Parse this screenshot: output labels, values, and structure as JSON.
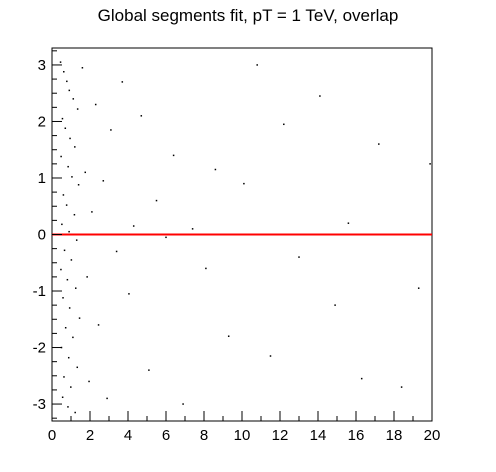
{
  "chart_data": {
    "type": "scatter",
    "title": "Global segments fit, pT = 1 TeV, overlap",
    "xlabel": "",
    "ylabel": "",
    "xlim": [
      0,
      20
    ],
    "ylim": [
      -3.3,
      3.3
    ],
    "x_ticks": [
      0,
      2,
      4,
      6,
      8,
      10,
      12,
      14,
      16,
      18,
      20
    ],
    "y_ticks": [
      -3,
      -2,
      -1,
      0,
      1,
      2,
      3
    ],
    "grid": false,
    "reference_line": {
      "y": 0,
      "color": "#ff0000"
    },
    "marker_color": "#000000",
    "series": [
      {
        "distribution": "dense band near x≈0.5–2, sparse tail toward x=20",
        "points": [
          [
            0.45,
            3.05
          ],
          [
            0.62,
            2.88
          ],
          [
            0.78,
            2.71
          ],
          [
            0.91,
            2.55
          ],
          [
            1.12,
            2.4
          ],
          [
            1.35,
            2.22
          ],
          [
            0.55,
            2.05
          ],
          [
            0.7,
            1.88
          ],
          [
            0.95,
            1.7
          ],
          [
            1.2,
            1.55
          ],
          [
            0.48,
            1.38
          ],
          [
            0.85,
            1.2
          ],
          [
            1.05,
            1.02
          ],
          [
            1.4,
            0.88
          ],
          [
            0.6,
            0.7
          ],
          [
            0.77,
            0.52
          ],
          [
            1.18,
            0.35
          ],
          [
            0.52,
            0.18
          ],
          [
            0.9,
            0.05
          ],
          [
            1.3,
            -0.1
          ],
          [
            0.66,
            -0.28
          ],
          [
            1.02,
            -0.45
          ],
          [
            0.47,
            -0.62
          ],
          [
            0.81,
            -0.8
          ],
          [
            1.25,
            -0.95
          ],
          [
            0.58,
            -1.12
          ],
          [
            0.93,
            -1.3
          ],
          [
            1.45,
            -1.48
          ],
          [
            0.72,
            -1.65
          ],
          [
            1.1,
            -1.82
          ],
          [
            0.5,
            -2.0
          ],
          [
            0.88,
            -2.18
          ],
          [
            1.33,
            -2.35
          ],
          [
            0.63,
            -2.52
          ],
          [
            0.99,
            -2.7
          ],
          [
            0.56,
            -2.88
          ],
          [
            0.84,
            -3.05
          ],
          [
            1.22,
            -3.15
          ],
          [
            1.6,
            2.95
          ],
          [
            1.75,
            1.1
          ],
          [
            1.85,
            -0.75
          ],
          [
            1.95,
            -2.6
          ],
          [
            2.1,
            0.4
          ],
          [
            2.3,
            2.3
          ],
          [
            2.45,
            -1.6
          ],
          [
            2.7,
            0.95
          ],
          [
            2.9,
            -2.9
          ],
          [
            3.1,
            1.85
          ],
          [
            3.4,
            -0.3
          ],
          [
            3.7,
            2.7
          ],
          [
            4.05,
            -1.05
          ],
          [
            4.3,
            0.15
          ],
          [
            4.7,
            2.1
          ],
          [
            5.1,
            -2.4
          ],
          [
            5.5,
            0.6
          ],
          [
            6.0,
            -0.05
          ],
          [
            6.4,
            1.4
          ],
          [
            6.9,
            -3.0
          ],
          [
            7.4,
            0.1
          ],
          [
            8.1,
            -0.6
          ],
          [
            8.6,
            1.15
          ],
          [
            9.3,
            -1.8
          ],
          [
            10.1,
            0.9
          ],
          [
            10.8,
            3.0
          ],
          [
            11.5,
            -2.15
          ],
          [
            12.2,
            1.95
          ],
          [
            13.0,
            -0.4
          ],
          [
            14.1,
            2.45
          ],
          [
            14.9,
            -1.25
          ],
          [
            15.6,
            0.2
          ],
          [
            16.3,
            -2.55
          ],
          [
            17.2,
            1.6
          ],
          [
            18.4,
            -2.7
          ],
          [
            19.9,
            1.25
          ],
          [
            19.3,
            -0.95
          ]
        ]
      }
    ]
  }
}
